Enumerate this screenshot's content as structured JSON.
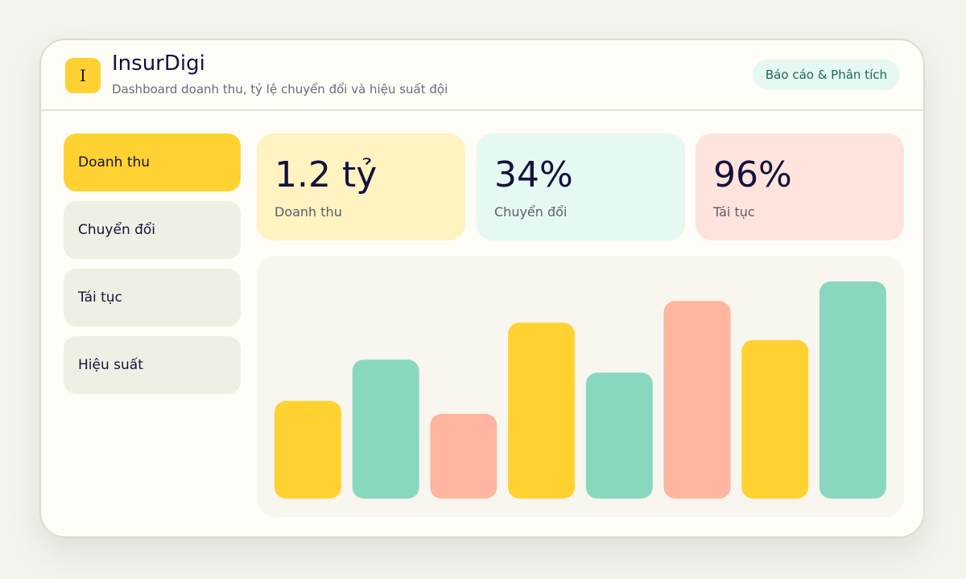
{
  "header": {
    "logo_letter": "I",
    "title": "InsurDigi",
    "subtitle": "Dashboard doanh thu, tỷ lệ chuyển đổi và hiệu suất đội",
    "badge": "Báo cáo & Phân tích"
  },
  "sidebar": {
    "items": [
      {
        "label": "Doanh thu",
        "active": true
      },
      {
        "label": "Chuyển đổi",
        "active": false
      },
      {
        "label": "Tái tục",
        "active": false
      },
      {
        "label": "Hiệu suất",
        "active": false
      }
    ]
  },
  "kpis": [
    {
      "value": "1.2 tỷ",
      "label": "Doanh thu",
      "bg": "#fff3c2"
    },
    {
      "value": "34%",
      "label": "Chuyển đổi",
      "bg": "#e6f8f2"
    },
    {
      "value": "96%",
      "label": "Tái tục",
      "bg": "#ffe4dd"
    }
  ],
  "colors": {
    "accent_yellow": "#ffd232",
    "accent_mint": "#88d8c0",
    "accent_peach": "#ffb59f",
    "text_dark": "#14123c"
  },
  "chart_data": {
    "type": "bar",
    "categories": [
      "",
      "",
      "",
      "",
      "",
      "",
      "",
      ""
    ],
    "values": [
      45,
      64,
      39,
      81,
      58,
      91,
      73,
      100
    ],
    "colors": [
      "#ffd232",
      "#88d8c0",
      "#ffb59f",
      "#ffd232",
      "#88d8c0",
      "#ffb59f",
      "#ffd232",
      "#88d8c0"
    ],
    "ylim": [
      0,
      100
    ],
    "grid": false,
    "title": "",
    "xlabel": "",
    "ylabel": ""
  }
}
